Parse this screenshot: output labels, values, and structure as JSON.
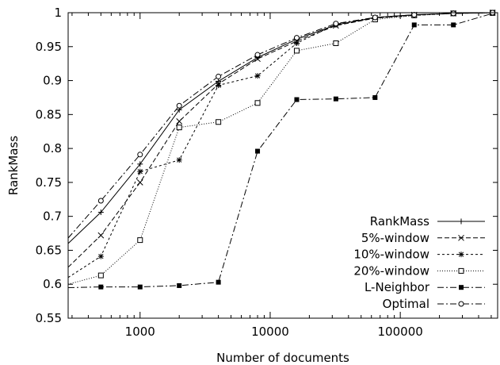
{
  "chart_data": {
    "type": "line",
    "title": "",
    "xlabel": "Number of documents",
    "ylabel": "RankMass",
    "xscale": "log",
    "xlim": [
      280,
      560000
    ],
    "ylim": [
      0.55,
      1.0
    ],
    "x_ticks": [
      1000,
      10000,
      100000
    ],
    "x_tick_labels": [
      "1000",
      "10000",
      "100000"
    ],
    "y_ticks": [
      0.55,
      0.6,
      0.65,
      0.7,
      0.75,
      0.8,
      0.85,
      0.9,
      0.95,
      1.0
    ],
    "y_tick_labels": [
      "0.55",
      "0.6",
      "0.65",
      "0.7",
      "0.75",
      "0.8",
      "0.85",
      "0.9",
      "0.95",
      "1"
    ],
    "grid": false,
    "legend_position": "bottom-right",
    "x": [
      500,
      1000,
      2000,
      4000,
      8000,
      16000,
      32000,
      64000,
      128000,
      256000,
      512000
    ],
    "series": [
      {
        "name": "RankMass",
        "marker": "plus",
        "dash": "solid",
        "start": [
          280,
          0.66
        ],
        "values": [
          0.706,
          0.777,
          0.857,
          0.899,
          0.934,
          0.961,
          0.982,
          0.993,
          0.997,
          0.999,
          1.0
        ]
      },
      {
        "name": "5%-window",
        "marker": "cross",
        "dash": "dashed",
        "start": [
          280,
          0.625
        ],
        "values": [
          0.672,
          0.75,
          0.84,
          0.895,
          0.932,
          0.958,
          0.981,
          0.992,
          0.997,
          0.999,
          1.0
        ]
      },
      {
        "name": "10%-window",
        "marker": "star",
        "dash": "short-dashed",
        "start": [
          280,
          0.61
        ],
        "values": [
          0.641,
          0.766,
          0.783,
          0.893,
          0.907,
          0.955,
          0.983,
          0.992,
          0.996,
          0.999,
          1.0
        ]
      },
      {
        "name": "20%-window",
        "marker": "open-square",
        "dash": "dotted",
        "start": [
          280,
          0.6
        ],
        "values": [
          0.613,
          0.665,
          0.831,
          0.839,
          0.867,
          0.944,
          0.955,
          0.99,
          0.996,
          0.999,
          1.0
        ]
      },
      {
        "name": "L-Neighbor",
        "marker": "filled-square",
        "dash": "dash-dot",
        "start": [
          280,
          0.595
        ],
        "values": [
          0.596,
          0.596,
          0.598,
          0.603,
          0.796,
          0.872,
          0.873,
          0.875,
          0.982,
          0.982,
          0.999
        ]
      },
      {
        "name": "Optimal",
        "marker": "open-circle",
        "dash": "dash-dot",
        "start": [
          280,
          0.668
        ],
        "values": [
          0.723,
          0.791,
          0.863,
          0.906,
          0.938,
          0.963,
          0.984,
          0.993,
          0.997,
          0.999,
          1.0
        ]
      }
    ]
  }
}
